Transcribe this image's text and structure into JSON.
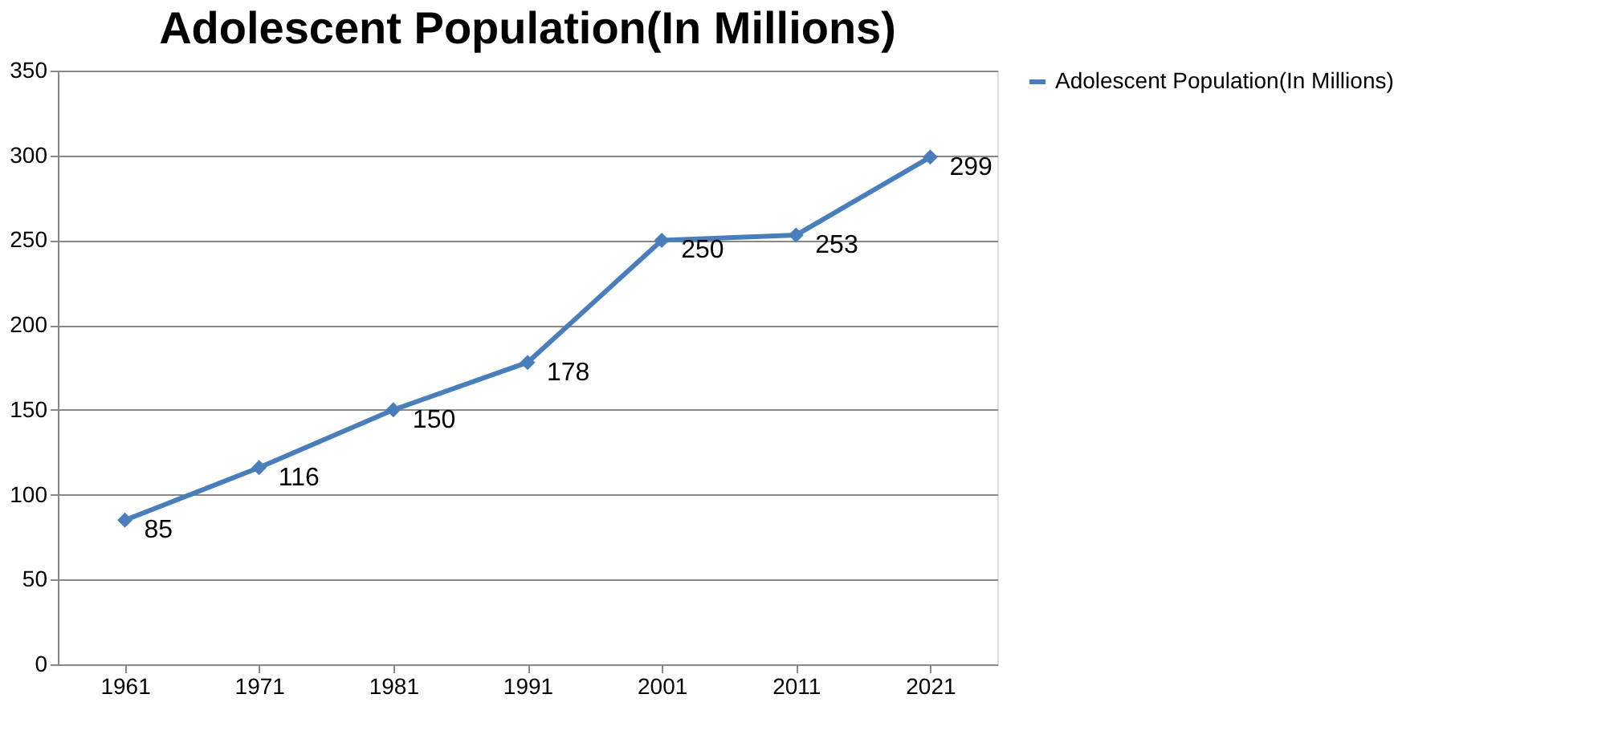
{
  "chart_data": {
    "type": "line",
    "title": "Adolescent Population(In Millions)",
    "categories": [
      "1961",
      "1971",
      "1981",
      "1991",
      "2001",
      "2011",
      "2021"
    ],
    "series": [
      {
        "name": "Adolescent Population(In Millions)",
        "color": "#4a7ebb",
        "values": [
          85,
          116,
          150,
          178,
          250,
          253,
          299
        ]
      }
    ],
    "ylim": [
      0,
      350
    ],
    "yticks": [
      0,
      50,
      100,
      150,
      200,
      250,
      300,
      350
    ],
    "grid": "y",
    "legend": "right",
    "marker": "diamond",
    "line_style": "solid",
    "data_labels": true
  }
}
